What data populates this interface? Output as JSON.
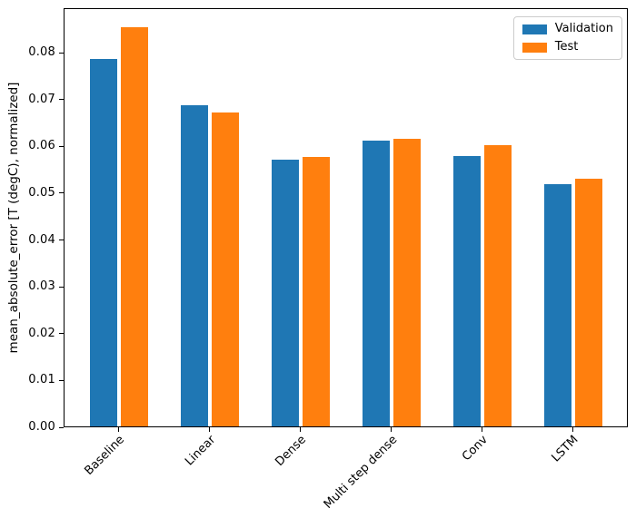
{
  "figure": {
    "background": "#ffffff",
    "spine_color": "#000000"
  },
  "chart_data": {
    "type": "bar",
    "title": "",
    "xlabel": "",
    "ylabel": "mean_absolute_error [T (degC), normalized]",
    "categories": [
      "Baseline",
      "Linear",
      "Dense",
      "Multi step dense",
      "Conv",
      "LSTM"
    ],
    "series": [
      {
        "name": "Validation",
        "color": "#1f77b4",
        "values": [
          0.0784,
          0.0685,
          0.0569,
          0.061,
          0.0578,
          0.0518
        ]
      },
      {
        "name": "Test",
        "color": "#ff7f0e",
        "values": [
          0.0852,
          0.067,
          0.0576,
          0.0615,
          0.06,
          0.0529
        ]
      }
    ],
    "ylim": [
      0,
      0.0895
    ],
    "ytick_labels": [
      "0.00",
      "0.01",
      "0.02",
      "0.03",
      "0.04",
      "0.05",
      "0.06",
      "0.07",
      "0.08"
    ],
    "xtick_rotation_deg": 45,
    "grid": false,
    "legend": {
      "position": "upper right"
    }
  }
}
